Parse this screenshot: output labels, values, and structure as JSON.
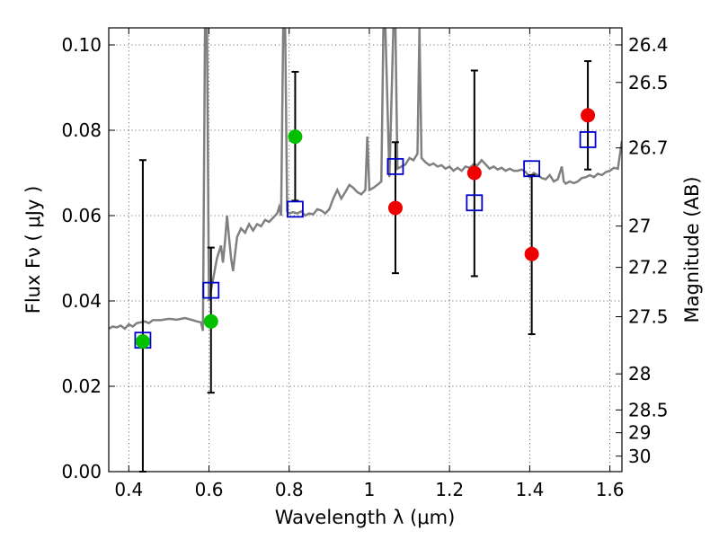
{
  "chart_data": {
    "type": "scatter",
    "xlabel": "Wavelength  λ (μm)",
    "ylabel": "Flux  Fν  ( μJy )",
    "y2label": "Magnitude (AB)",
    "xlim": [
      0.35,
      1.63
    ],
    "ylim": [
      0.0,
      0.104
    ],
    "grid": true,
    "x_ticks": [
      0.4,
      0.6,
      0.8,
      1.0,
      1.2,
      1.4,
      1.6
    ],
    "x_tick_labels": [
      "0.4",
      "0.6",
      "0.8",
      "1",
      "1.2",
      "1.4",
      "1.6"
    ],
    "y_ticks": [
      0.0,
      0.02,
      0.04,
      0.06,
      0.08,
      0.1
    ],
    "y_tick_labels": [
      "0.00",
      "0.02",
      "0.04",
      "0.06",
      "0.08",
      "0.10"
    ],
    "mag_ticks": [
      {
        "label": "26.4",
        "mag": 26.4
      },
      {
        "label": "26.5",
        "mag": 26.5
      },
      {
        "label": "26.7",
        "mag": 26.7
      },
      {
        "label": "27",
        "mag": 27.0
      },
      {
        "label": "27.2",
        "mag": 27.2
      },
      {
        "label": "27.5",
        "mag": 27.5
      },
      {
        "label": "28",
        "mag": 28.0
      },
      {
        "label": "28.5",
        "mag": 28.5
      },
      {
        "label": "29",
        "mag": 29.0
      },
      {
        "label": "30",
        "mag": 30.0
      }
    ],
    "colors": {
      "spectrum": "#808080",
      "model": "#0000cc",
      "green": "#00c000",
      "red": "#ee0000",
      "errorbar": "#000000"
    },
    "spectrum": [
      [
        0.35,
        0.0335
      ],
      [
        0.36,
        0.034
      ],
      [
        0.37,
        0.0338
      ],
      [
        0.38,
        0.0342
      ],
      [
        0.39,
        0.0335
      ],
      [
        0.4,
        0.0345
      ],
      [
        0.41,
        0.034
      ],
      [
        0.42,
        0.0348
      ],
      [
        0.43,
        0.035
      ],
      [
        0.44,
        0.0352
      ],
      [
        0.45,
        0.0348
      ],
      [
        0.46,
        0.0355
      ],
      [
        0.48,
        0.0355
      ],
      [
        0.5,
        0.0358
      ],
      [
        0.52,
        0.0356
      ],
      [
        0.54,
        0.036
      ],
      [
        0.56,
        0.0355
      ],
      [
        0.57,
        0.0352
      ],
      [
        0.58,
        0.035
      ],
      [
        0.585,
        0.033
      ],
      [
        0.59,
        0.104
      ],
      [
        0.595,
        0.104
      ],
      [
        0.6,
        0.04
      ],
      [
        0.61,
        0.045
      ],
      [
        0.62,
        0.05
      ],
      [
        0.63,
        0.053
      ],
      [
        0.635,
        0.049
      ],
      [
        0.64,
        0.054
      ],
      [
        0.645,
        0.06
      ],
      [
        0.65,
        0.055
      ],
      [
        0.655,
        0.05
      ],
      [
        0.66,
        0.047
      ],
      [
        0.665,
        0.051
      ],
      [
        0.67,
        0.055
      ],
      [
        0.68,
        0.057
      ],
      [
        0.69,
        0.056
      ],
      [
        0.7,
        0.058
      ],
      [
        0.71,
        0.0565
      ],
      [
        0.72,
        0.058
      ],
      [
        0.73,
        0.0575
      ],
      [
        0.74,
        0.059
      ],
      [
        0.75,
        0.0585
      ],
      [
        0.76,
        0.0595
      ],
      [
        0.77,
        0.0605
      ],
      [
        0.775,
        0.062
      ],
      [
        0.78,
        0.06
      ],
      [
        0.785,
        0.104
      ],
      [
        0.79,
        0.104
      ],
      [
        0.795,
        0.061
      ],
      [
        0.8,
        0.0605
      ],
      [
        0.81,
        0.0608
      ],
      [
        0.82,
        0.0605
      ],
      [
        0.83,
        0.061
      ],
      [
        0.84,
        0.06
      ],
      [
        0.85,
        0.0605
      ],
      [
        0.86,
        0.0603
      ],
      [
        0.87,
        0.0615
      ],
      [
        0.88,
        0.0612
      ],
      [
        0.89,
        0.0605
      ],
      [
        0.9,
        0.0615
      ],
      [
        0.91,
        0.064
      ],
      [
        0.92,
        0.066
      ],
      [
        0.93,
        0.064
      ],
      [
        0.94,
        0.0655
      ],
      [
        0.95,
        0.0672
      ],
      [
        0.96,
        0.0665
      ],
      [
        0.97,
        0.0655
      ],
      [
        0.98,
        0.065
      ],
      [
        0.99,
        0.066
      ],
      [
        0.995,
        0.0785
      ],
      [
        1.0,
        0.066
      ],
      [
        1.01,
        0.0665
      ],
      [
        1.02,
        0.0672
      ],
      [
        1.03,
        0.068
      ],
      [
        1.035,
        0.104
      ],
      [
        1.04,
        0.104
      ],
      [
        1.05,
        0.069
      ],
      [
        1.06,
        0.104
      ],
      [
        1.065,
        0.104
      ],
      [
        1.07,
        0.071
      ],
      [
        1.08,
        0.0715
      ],
      [
        1.09,
        0.072
      ],
      [
        1.1,
        0.0735
      ],
      [
        1.11,
        0.073
      ],
      [
        1.12,
        0.0745
      ],
      [
        1.125,
        0.104
      ],
      [
        1.13,
        0.0735
      ],
      [
        1.14,
        0.0725
      ],
      [
        1.15,
        0.0718
      ],
      [
        1.16,
        0.0722
      ],
      [
        1.17,
        0.0715
      ],
      [
        1.18,
        0.0718
      ],
      [
        1.19,
        0.071
      ],
      [
        1.2,
        0.0715
      ],
      [
        1.21,
        0.0705
      ],
      [
        1.22,
        0.0712
      ],
      [
        1.23,
        0.0705
      ],
      [
        1.24,
        0.0715
      ],
      [
        1.25,
        0.0712
      ],
      [
        1.26,
        0.072
      ],
      [
        1.27,
        0.0718
      ],
      [
        1.28,
        0.073
      ],
      [
        1.29,
        0.072
      ],
      [
        1.3,
        0.071
      ],
      [
        1.31,
        0.0715
      ],
      [
        1.32,
        0.0708
      ],
      [
        1.33,
        0.0712
      ],
      [
        1.34,
        0.0705
      ],
      [
        1.35,
        0.071
      ],
      [
        1.36,
        0.0705
      ],
      [
        1.37,
        0.0705
      ],
      [
        1.38,
        0.0708
      ],
      [
        1.39,
        0.0702
      ],
      [
        1.4,
        0.069
      ],
      [
        1.41,
        0.07
      ],
      [
        1.42,
        0.0695
      ],
      [
        1.43,
        0.0688
      ],
      [
        1.44,
        0.0685
      ],
      [
        1.45,
        0.0695
      ],
      [
        1.46,
        0.068
      ],
      [
        1.47,
        0.0685
      ],
      [
        1.48,
        0.0715
      ],
      [
        1.485,
        0.068
      ],
      [
        1.49,
        0.0675
      ],
      [
        1.5,
        0.068
      ],
      [
        1.51,
        0.0676
      ],
      [
        1.52,
        0.068
      ],
      [
        1.53,
        0.0688
      ],
      [
        1.54,
        0.069
      ],
      [
        1.55,
        0.0695
      ],
      [
        1.56,
        0.069
      ],
      [
        1.57,
        0.0698
      ],
      [
        1.58,
        0.0695
      ],
      [
        1.59,
        0.0702
      ],
      [
        1.6,
        0.0705
      ],
      [
        1.61,
        0.0712
      ],
      [
        1.62,
        0.071
      ],
      [
        1.63,
        0.0775
      ]
    ],
    "model_points": [
      {
        "x": 0.435,
        "y": 0.0308
      },
      {
        "x": 0.605,
        "y": 0.0425
      },
      {
        "x": 0.815,
        "y": 0.0615
      },
      {
        "x": 1.065,
        "y": 0.0715
      },
      {
        "x": 1.262,
        "y": 0.063
      },
      {
        "x": 1.405,
        "y": 0.071
      },
      {
        "x": 1.545,
        "y": 0.0778
      }
    ],
    "observed_points": [
      {
        "x": 0.435,
        "y": 0.0305,
        "yerr_low": 0.0,
        "yerr_high": 0.073,
        "color": "green"
      },
      {
        "x": 0.605,
        "y": 0.0352,
        "yerr_low": 0.0185,
        "yerr_high": 0.0525,
        "color": "green"
      },
      {
        "x": 0.815,
        "y": 0.0785,
        "yerr_low": 0.0635,
        "yerr_high": 0.0937,
        "color": "green"
      },
      {
        "x": 1.065,
        "y": 0.0618,
        "yerr_low": 0.0465,
        "yerr_high": 0.0772,
        "color": "red"
      },
      {
        "x": 1.262,
        "y": 0.07,
        "yerr_low": 0.0458,
        "yerr_high": 0.094,
        "color": "red"
      },
      {
        "x": 1.405,
        "y": 0.051,
        "yerr_low": 0.0322,
        "yerr_high": 0.0695,
        "color": "red"
      },
      {
        "x": 1.545,
        "y": 0.0835,
        "yerr_low": 0.0708,
        "yerr_high": 0.0962,
        "color": "red"
      }
    ]
  }
}
